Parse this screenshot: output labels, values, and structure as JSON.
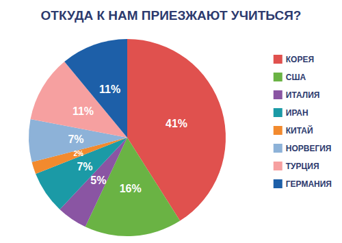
{
  "chart_data": {
    "type": "pie",
    "title": "ОТКУДА К НАМ ПРИЕЗЖАЮТ УЧИТЬСЯ?",
    "categories": [
      "КОРЕЯ",
      "США",
      "ИТАЛИЯ",
      "ИРАН",
      "КИТАЙ",
      "НОРВЕГИЯ",
      "ТУРЦИЯ",
      "ГЕРМАНИЯ"
    ],
    "values": [
      41,
      16,
      5,
      7,
      2,
      7,
      11,
      11
    ],
    "value_labels": [
      "41%",
      "16%",
      "5%",
      "7%",
      "2%",
      "7%",
      "11%",
      "11%"
    ],
    "colors": [
      "#e0514e",
      "#6ab344",
      "#8a55a3",
      "#1b9aa6",
      "#f28a2e",
      "#8db2d8",
      "#f6a0a0",
      "#1d5fa8"
    ],
    "data_labels": true,
    "legend": "right"
  }
}
